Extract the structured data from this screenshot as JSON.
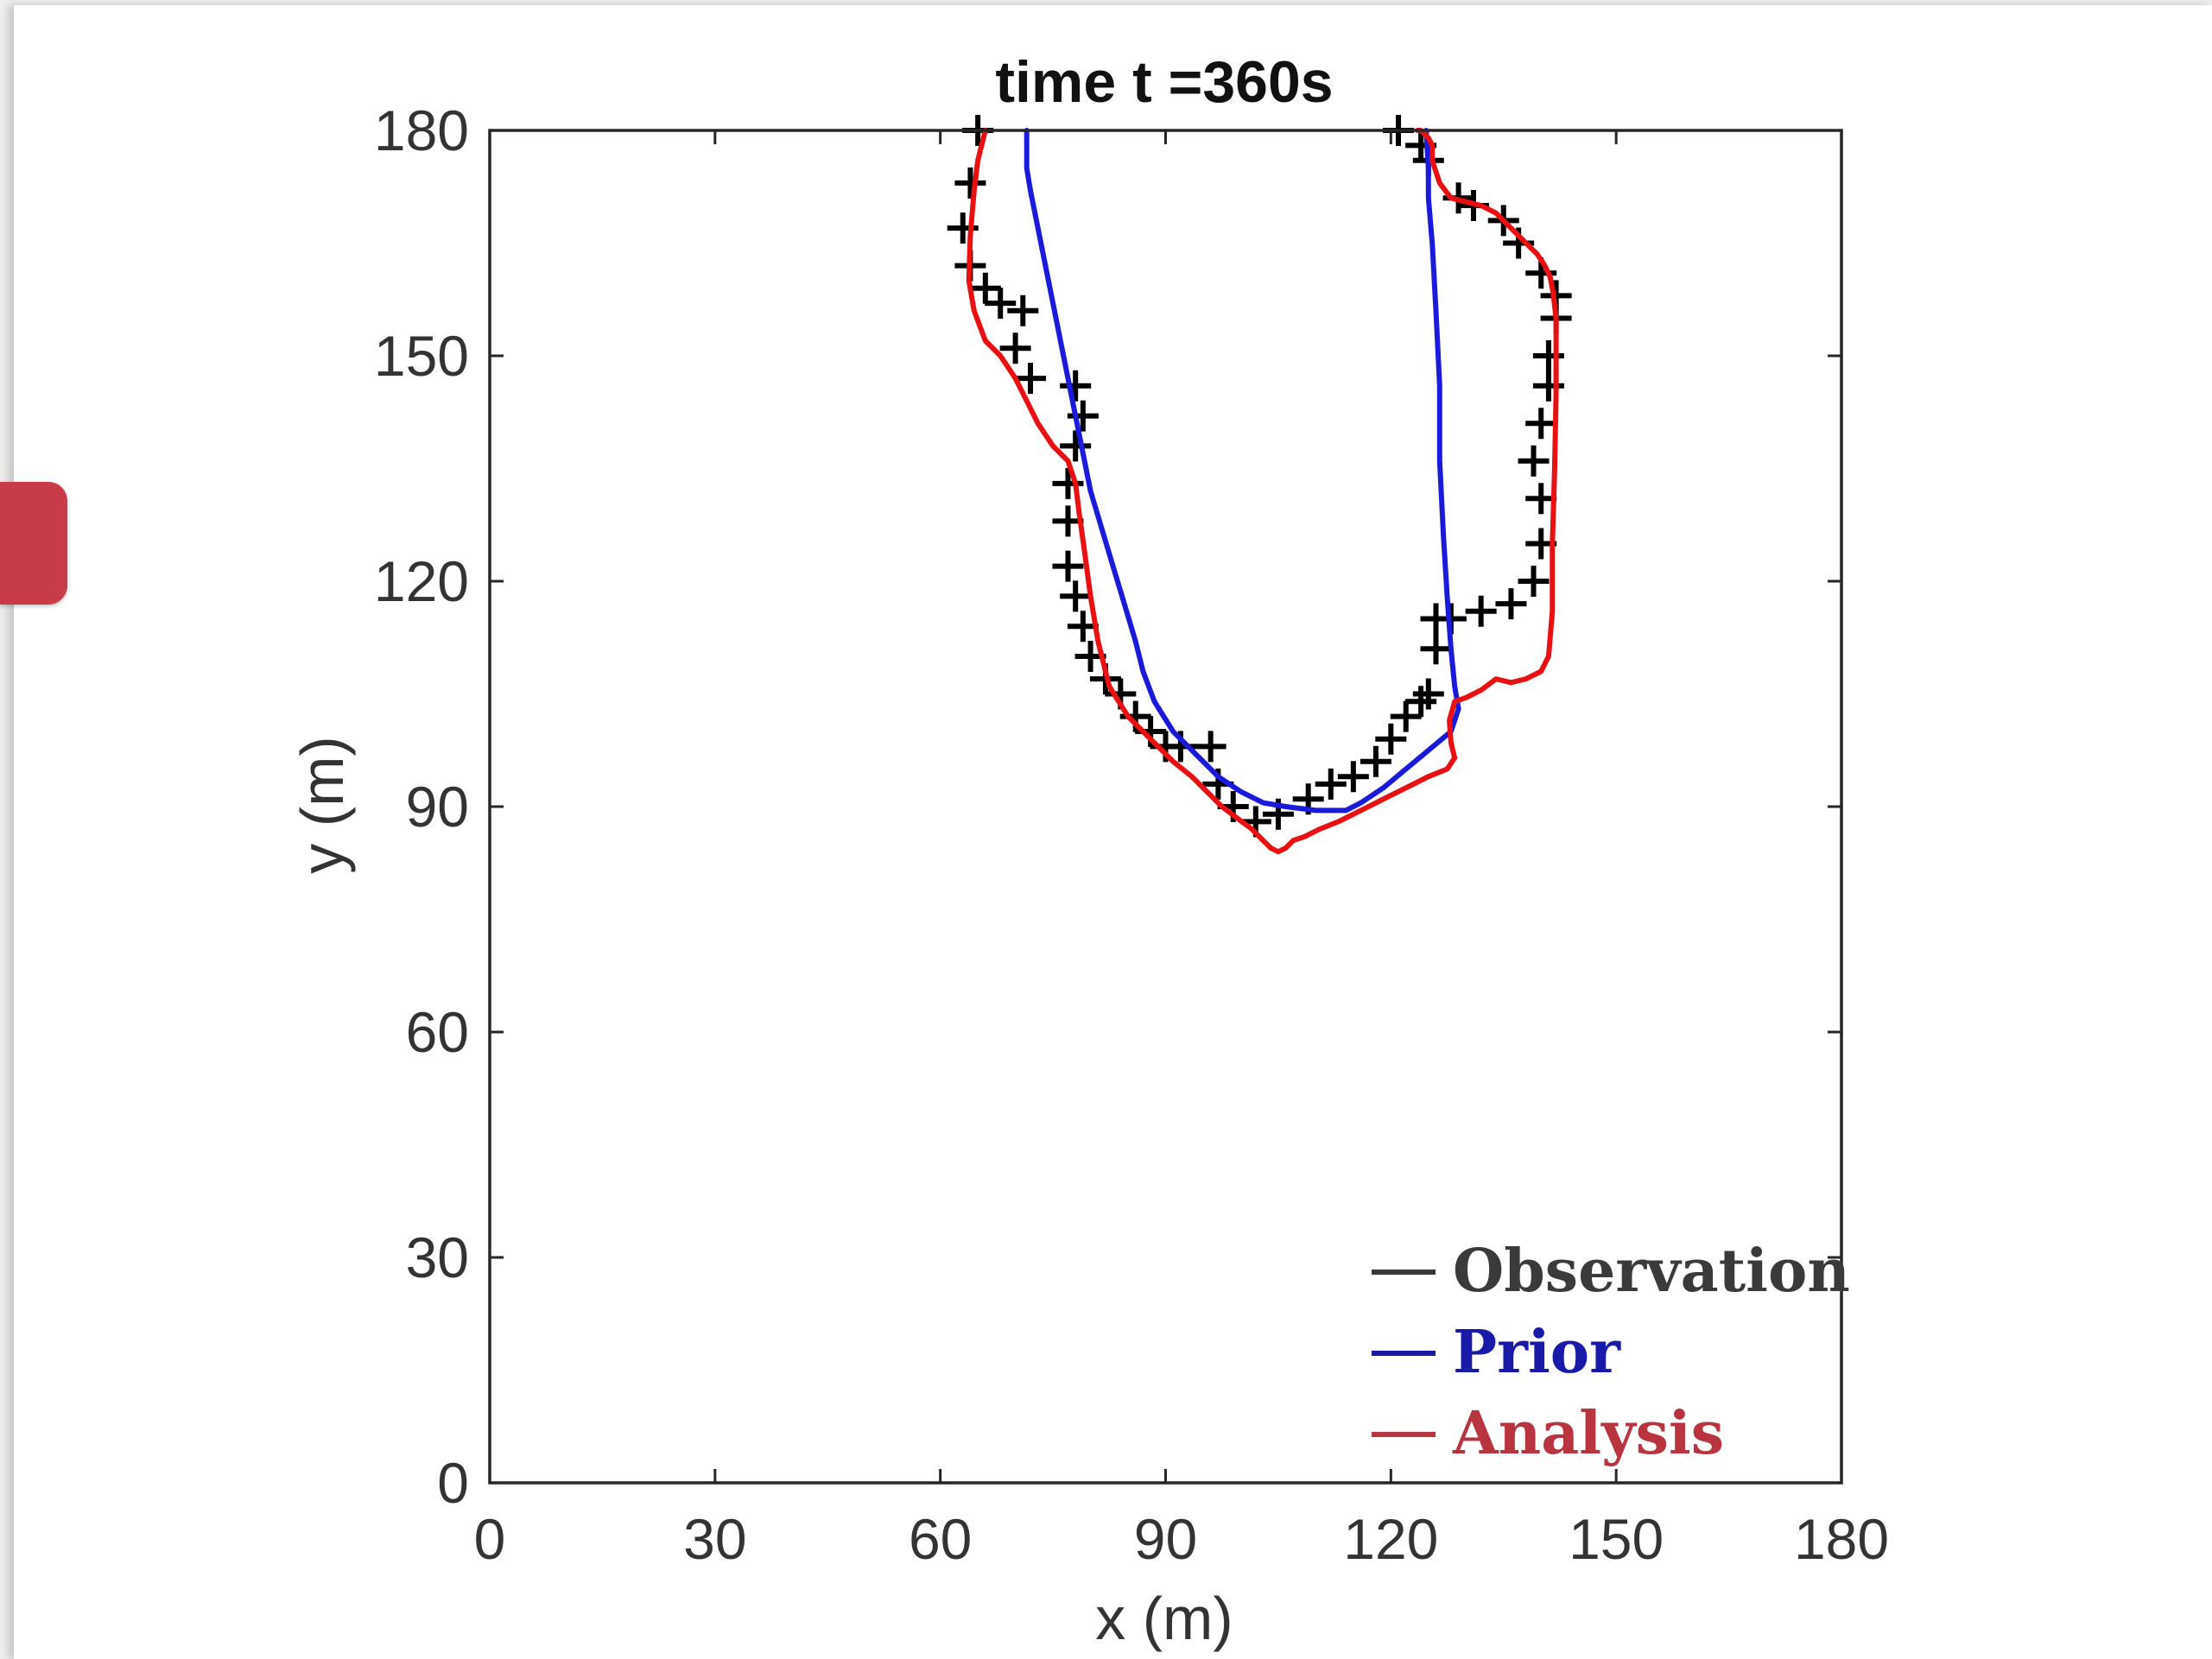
{
  "chart_data": {
    "type": "line",
    "title": "time t =360s",
    "xlabel": "x (m)",
    "ylabel": "y (m)",
    "xlim": [
      0,
      180
    ],
    "ylim": [
      0,
      180
    ],
    "xticks": [
      0,
      30,
      60,
      90,
      120,
      150,
      180
    ],
    "yticks": [
      0,
      30,
      60,
      90,
      120,
      150,
      180
    ],
    "grid": false,
    "legend_position": "bottom-right",
    "series": [
      {
        "name": "Observation",
        "kind": "markers",
        "marker": "+",
        "color": "#000000",
        "x": [
          65,
          64,
          63,
          64,
          66,
          68,
          71,
          70,
          72,
          78,
          79,
          78,
          77,
          77,
          77,
          78,
          79,
          80,
          82,
          84,
          86,
          88,
          90,
          92,
          96,
          97,
          99,
          102,
          105,
          109,
          112,
          115,
          118,
          120,
          122,
          124,
          125,
          126,
          126,
          128,
          132,
          136,
          139,
          140,
          140,
          139,
          140,
          141,
          141,
          142,
          142,
          140,
          137,
          135,
          131,
          129,
          125,
          124,
          121
        ],
        "y": [
          180,
          173,
          167,
          162,
          159,
          157,
          156,
          151,
          147,
          146,
          142,
          138,
          133,
          128,
          122,
          118,
          114,
          110,
          107,
          105,
          102,
          100,
          98,
          98,
          98,
          93,
          90,
          88,
          89,
          91,
          93,
          94,
          96,
          99,
          102,
          104,
          105,
          111,
          115,
          115,
          116,
          117,
          120,
          125,
          131,
          136,
          141,
          146,
          150,
          155,
          158,
          161,
          165,
          168,
          170,
          171,
          176,
          178,
          180
        ],
        "x_offsets": [
          0,
          0,
          0,
          0,
          0,
          0,
          0,
          0,
          0,
          0,
          0,
          0,
          0,
          0,
          0,
          0,
          0,
          0,
          0,
          0,
          0,
          0,
          0,
          0,
          0,
          0,
          0,
          0,
          0,
          0,
          0,
          0,
          0,
          0,
          0,
          0,
          0,
          0,
          0,
          0,
          0,
          0,
          0,
          0,
          0,
          0,
          0,
          0,
          0,
          0,
          0,
          0,
          0,
          0,
          0,
          0,
          0,
          0,
          0
        ]
      },
      {
        "name": "Prior",
        "kind": "line",
        "color": "#1a1adb",
        "x": [
          71.5,
          71.5,
          72,
          73,
          74,
          75,
          76,
          77,
          78,
          79,
          80,
          81.5,
          83,
          84.5,
          86,
          87,
          88.5,
          91,
          94,
          97,
          100,
          103,
          106,
          110,
          114,
          116,
          119,
          122,
          125,
          128,
          129,
          128.5,
          128,
          127.5,
          127,
          126.5,
          126.5,
          126,
          125.5,
          125,
          125,
          124.8,
          124.7
        ],
        "y": [
          180,
          175,
          172,
          167,
          162,
          157,
          152,
          147,
          142,
          137,
          132,
          127,
          122,
          117,
          112,
          108,
          104,
          100,
          97,
          94,
          92,
          90.5,
          90,
          89.5,
          89.5,
          90.5,
          92.5,
          95,
          97.5,
          100,
          103,
          106,
          111,
          118,
          126,
          136,
          146,
          156,
          165,
          171,
          175,
          178,
          180
        ]
      },
      {
        "name": "Analysis",
        "kind": "line",
        "color": "#e81010",
        "x": [
          66,
          65,
          64.5,
          64,
          63.8,
          64.5,
          66,
          68,
          70,
          71.5,
          73,
          75,
          77,
          78,
          78.5,
          79.2,
          80,
          81,
          82.5,
          85,
          88,
          91,
          93.5,
          95.5,
          97.5,
          99.5,
          101.5,
          103,
          104,
          105,
          106,
          107,
          108.5,
          110.5,
          113,
          116,
          119,
          122,
          125,
          127.5,
          128.5,
          128,
          127.8,
          128.5,
          130,
          132,
          134,
          136,
          138,
          140,
          141,
          141.5,
          141.5,
          141.8,
          142,
          142,
          142,
          141.6,
          141.2,
          140.5,
          139.5,
          138,
          136,
          134,
          132,
          130,
          128,
          126.5,
          125.5,
          125.5,
          125,
          124,
          123.5
        ],
        "y": [
          180,
          176,
          172,
          166,
          160,
          156,
          152,
          150,
          147,
          144,
          141,
          138,
          136,
          133,
          129,
          124,
          118,
          112,
          106,
          102,
          99,
          96,
          94,
          92,
          90,
          88.5,
          87,
          85.5,
          84.5,
          84,
          84.5,
          85.5,
          86,
          87,
          88,
          89.5,
          91,
          92.5,
          94,
          95,
          96.5,
          98.5,
          101.5,
          104,
          104.5,
          105.5,
          107,
          106.5,
          107,
          108,
          110,
          116,
          125,
          135,
          145,
          151,
          155,
          158.5,
          160.5,
          162,
          163.5,
          165,
          167,
          169,
          170,
          170.5,
          171,
          173,
          176,
          178,
          179,
          180,
          180
        ]
      }
    ]
  }
}
